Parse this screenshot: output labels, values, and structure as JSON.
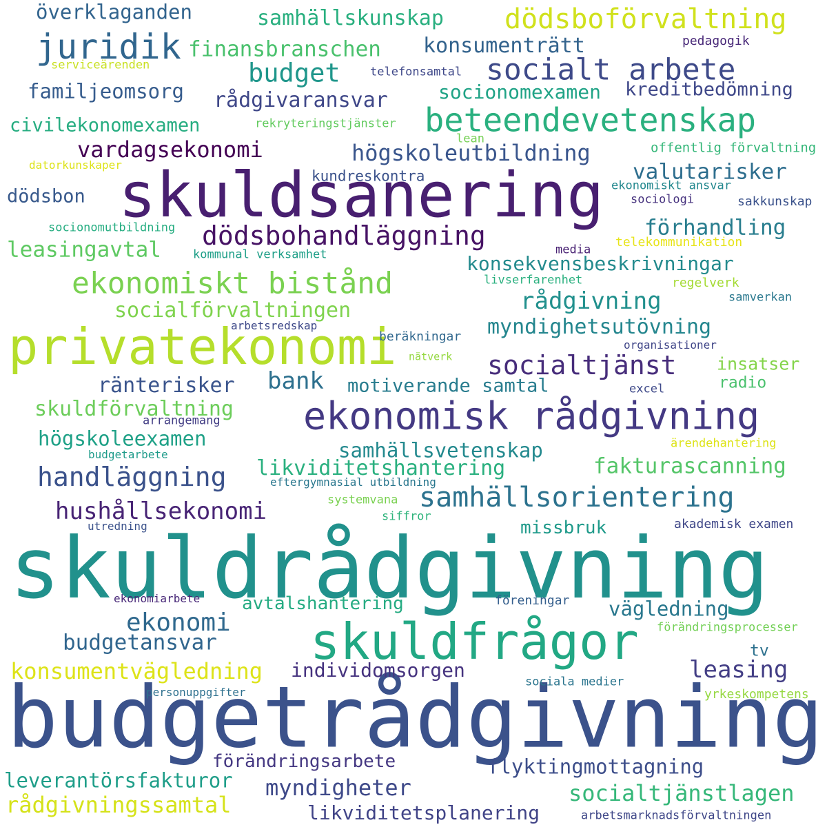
{
  "words": [
    {
      "text": "skuldrådgivning",
      "color": "#21918c"
    },
    {
      "text": "budgetrådgivning",
      "color": "#3b528b"
    },
    {
      "text": "skuldsanering",
      "color": "#481f70"
    },
    {
      "text": "privatekonomi",
      "color": "#b5de2b"
    },
    {
      "text": "ekonomisk rådgivning",
      "color": "#443983"
    },
    {
      "text": "skuldfrågor",
      "color": "#22a884"
    },
    {
      "text": "ekonomiskt bistånd",
      "color": "#7ad151"
    },
    {
      "text": "beteendevetenskap",
      "color": "#2ab07f"
    },
    {
      "text": "socialt arbete",
      "color": "#3e4a89"
    },
    {
      "text": "juridik",
      "color": "#31668e"
    },
    {
      "text": "dödsboförvaltning",
      "color": "#d0e11c"
    },
    {
      "text": "samhällsorientering",
      "color": "#2c728e"
    },
    {
      "text": "handläggning",
      "color": "#3b528b"
    },
    {
      "text": "dödsbohandläggning",
      "color": "#471365"
    },
    {
      "text": "socialtjänst",
      "color": "#472d7b"
    },
    {
      "text": "hushållsekonomi",
      "color": "#482475"
    },
    {
      "text": "konsumentvägledning",
      "color": "#dde318"
    },
    {
      "text": "socialtjänstlagen",
      "color": "#35b779"
    },
    {
      "text": "myndigheter",
      "color": "#3e4989"
    },
    {
      "text": "rådgivningssamtal",
      "color": "#d5e21a"
    },
    {
      "text": "leverantörsfakturor",
      "color": "#1f9e89"
    },
    {
      "text": "budget",
      "color": "#1f968b"
    },
    {
      "text": "ekonomi",
      "color": "#30698e"
    },
    {
      "text": "bank",
      "color": "#2d708e"
    },
    {
      "text": "leasing",
      "color": "#433e85"
    },
    {
      "text": "vardagsekonomi",
      "color": "#440154"
    },
    {
      "text": "högskoleutbildning",
      "color": "#39558c"
    },
    {
      "text": "finansbranschen",
      "color": "#4ac16d"
    },
    {
      "text": "samhällskunskap",
      "color": "#29af7f"
    },
    {
      "text": "konsumenträtt",
      "color": "#33638d"
    },
    {
      "text": "överklaganden",
      "color": "#32648e"
    },
    {
      "text": "rådgivaransvar",
      "color": "#3f4788"
    },
    {
      "text": "familjeomsorg",
      "color": "#365c8d"
    },
    {
      "text": "socionomexamen",
      "color": "#20a386"
    },
    {
      "text": "kreditbedömning",
      "color": "#3f4889"
    },
    {
      "text": "civilekonomexamen",
      "color": "#27ad81"
    },
    {
      "text": "valutarisker",
      "color": "#2e6e8e"
    },
    {
      "text": "förhandling",
      "color": "#287d8e"
    },
    {
      "text": "leasingavtal",
      "color": "#5ec962"
    },
    {
      "text": "konsekvensbeskrivningar",
      "color": "#238a8d"
    },
    {
      "text": "rådgivning",
      "color": "#21908d"
    },
    {
      "text": "socialförvaltningen",
      "color": "#7fd34e"
    },
    {
      "text": "myndighetsutövning",
      "color": "#24868e"
    },
    {
      "text": "ränterisker",
      "color": "#3a548c"
    },
    {
      "text": "skuldförvaltning",
      "color": "#6ccd5a"
    },
    {
      "text": "motiverande samtal",
      "color": "#287c8e"
    },
    {
      "text": "högskoleexamen",
      "color": "#1fa187"
    },
    {
      "text": "samhällsvetenskap",
      "color": "#23898e"
    },
    {
      "text": "likviditetshantering",
      "color": "#2ab07f"
    },
    {
      "text": "fakturascanning",
      "color": "#54c568"
    },
    {
      "text": "budgetansvar",
      "color": "#31668e"
    },
    {
      "text": "individomsorgen",
      "color": "#46337f"
    },
    {
      "text": "vägledning",
      "color": "#2a788e"
    },
    {
      "text": "avtalshantering",
      "color": "#25ab82"
    },
    {
      "text": "förändringsarbete",
      "color": "#453882"
    },
    {
      "text": "flyktingmottagning",
      "color": "#3d4e8a"
    },
    {
      "text": "likviditetsplanering",
      "color": "#414487"
    },
    {
      "text": "missbruk",
      "color": "#1f9a8a"
    },
    {
      "text": "dödsbon",
      "color": "#38598c"
    },
    {
      "text": "kundreskontra",
      "color": "#3b528b"
    },
    {
      "text": "insatser",
      "color": "#84d44b"
    },
    {
      "text": "radio",
      "color": "#4ac16d"
    },
    {
      "text": "tv",
      "color": "#2d718e"
    },
    {
      "text": "serviceärenden",
      "color": "#c8e020"
    },
    {
      "text": "telefonsamtal",
      "color": "#3f4889"
    },
    {
      "text": "pedagogik",
      "color": "#482878"
    },
    {
      "text": "rekryteringstjänster",
      "color": "#63cb5f"
    },
    {
      "text": "lean",
      "color": "#75d054"
    },
    {
      "text": "offentlig förvaltning",
      "color": "#35b779"
    },
    {
      "text": "datorkunskaper",
      "color": "#dde318"
    },
    {
      "text": "ekonomiskt ansvar",
      "color": "#23888e"
    },
    {
      "text": "sociologi",
      "color": "#46327e"
    },
    {
      "text": "sakkunskap",
      "color": "#3b528b"
    },
    {
      "text": "socionomutbildning",
      "color": "#26ad81"
    },
    {
      "text": "media",
      "color": "#482173"
    },
    {
      "text": "telekommunikation",
      "color": "#e7e419"
    },
    {
      "text": "kommunal verksamhet",
      "color": "#1f9f88"
    },
    {
      "text": "livserfarenhet",
      "color": "#2ab07f"
    },
    {
      "text": "regelverk",
      "color": "#a5db36"
    },
    {
      "text": "samverkan",
      "color": "#2a788e"
    },
    {
      "text": "arbetsredskap",
      "color": "#3e4989"
    },
    {
      "text": "beräkningar",
      "color": "#31688e"
    },
    {
      "text": "organisationer",
      "color": "#404688"
    },
    {
      "text": "nätverk",
      "color": "#95d840"
    },
    {
      "text": "excel",
      "color": "#3e4989"
    },
    {
      "text": "arrangemang",
      "color": "#433e85"
    },
    {
      "text": "ärendehantering",
      "color": "#dde318"
    },
    {
      "text": "budgetarbete",
      "color": "#1e9b8a"
    },
    {
      "text": "eftergymnasial utbildning",
      "color": "#2a778e"
    },
    {
      "text": "systemvana",
      "color": "#7ad151"
    },
    {
      "text": "siffror",
      "color": "#2fb47c"
    },
    {
      "text": "utredning",
      "color": "#3b528b"
    },
    {
      "text": "akademisk examen",
      "color": "#3f4788"
    },
    {
      "text": "ekonomiarbete",
      "color": "#482878"
    },
    {
      "text": "föreningar",
      "color": "#355f8d"
    },
    {
      "text": "förändringsprocesser",
      "color": "#73d056"
    },
    {
      "text": "personuppgifter",
      "color": "#2d708e"
    },
    {
      "text": "sociala medier",
      "color": "#2b758e"
    },
    {
      "text": "yrkeskompetens",
      "color": "#95d840"
    },
    {
      "text": "arbetsmarknadsförvaltningen",
      "color": "#3f4788"
    }
  ]
}
